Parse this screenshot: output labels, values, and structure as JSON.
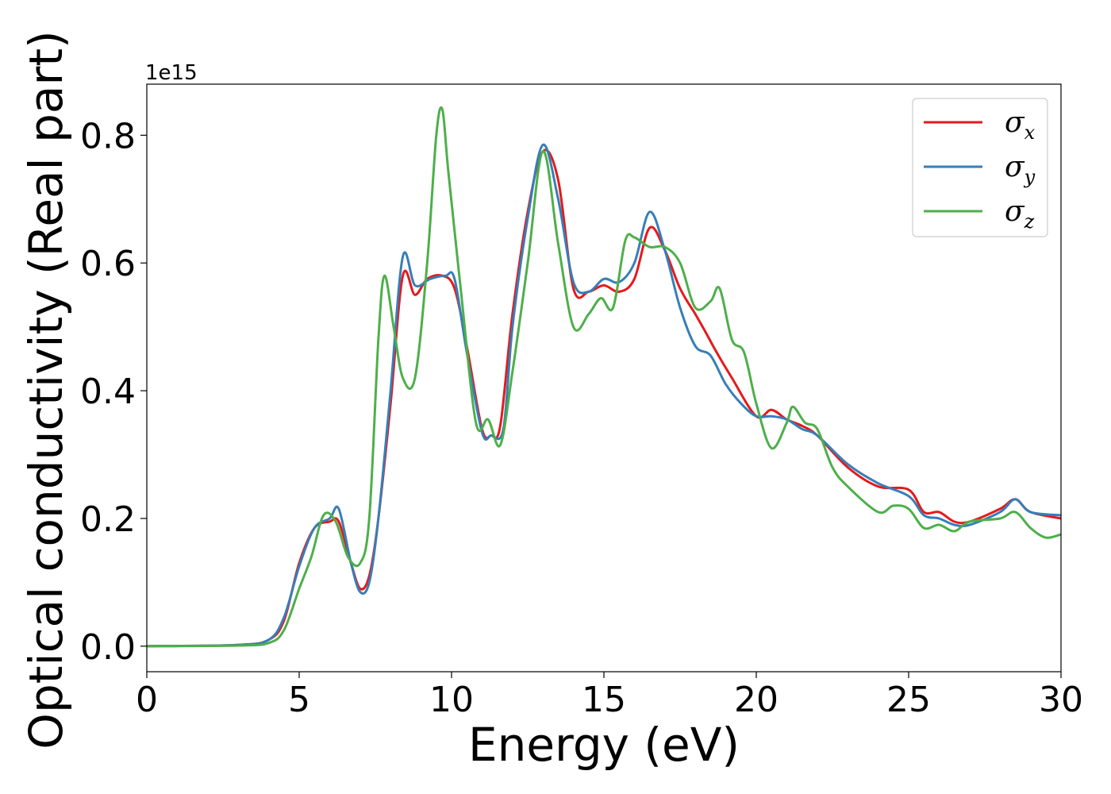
{
  "chart_data": {
    "type": "line",
    "title": "",
    "xlabel": "Energy (eV)",
    "ylabel": "Optical conductivity (Real part)",
    "offset_label": "1e15",
    "xlim": [
      0,
      30
    ],
    "ylim": [
      -0.04,
      0.88
    ],
    "x_ticks": [
      0,
      5,
      10,
      15,
      20,
      25,
      30
    ],
    "x_tick_labels": [
      "0",
      "5",
      "10",
      "15",
      "20",
      "25",
      "30"
    ],
    "y_ticks": [
      0.0,
      0.2,
      0.4,
      0.6,
      0.8
    ],
    "y_tick_labels": [
      "0.0",
      "0.2",
      "0.4",
      "0.6",
      "0.8"
    ],
    "grid": false,
    "legend_position": "top-right",
    "series": [
      {
        "name": "σx",
        "legend_symbol": "σ",
        "legend_subscript": "x",
        "color": "#e41a1c",
        "points": [
          [
            0,
            0
          ],
          [
            3,
            0.002
          ],
          [
            4,
            0.01
          ],
          [
            4.5,
            0.04
          ],
          [
            5,
            0.13
          ],
          [
            5.5,
            0.185
          ],
          [
            6,
            0.195
          ],
          [
            6.3,
            0.195
          ],
          [
            6.7,
            0.13
          ],
          [
            7,
            0.09
          ],
          [
            7.3,
            0.11
          ],
          [
            7.6,
            0.2
          ],
          [
            8,
            0.38
          ],
          [
            8.4,
            0.58
          ],
          [
            8.8,
            0.55
          ],
          [
            9.2,
            0.575
          ],
          [
            9.7,
            0.58
          ],
          [
            10.1,
            0.56
          ],
          [
            10.5,
            0.47
          ],
          [
            11,
            0.34
          ],
          [
            11.3,
            0.33
          ],
          [
            11.6,
            0.345
          ],
          [
            12,
            0.52
          ],
          [
            12.5,
            0.68
          ],
          [
            13,
            0.775
          ],
          [
            13.5,
            0.73
          ],
          [
            14,
            0.56
          ],
          [
            14.5,
            0.555
          ],
          [
            15,
            0.565
          ],
          [
            15.5,
            0.555
          ],
          [
            16,
            0.575
          ],
          [
            16.5,
            0.655
          ],
          [
            17,
            0.62
          ],
          [
            17.5,
            0.56
          ],
          [
            18,
            0.52
          ],
          [
            18.3,
            0.495
          ],
          [
            18.7,
            0.46
          ],
          [
            19.2,
            0.42
          ],
          [
            20,
            0.36
          ],
          [
            20.5,
            0.37
          ],
          [
            21,
            0.355
          ],
          [
            21.5,
            0.345
          ],
          [
            22,
            0.33
          ],
          [
            23,
            0.28
          ],
          [
            24,
            0.25
          ],
          [
            25,
            0.245
          ],
          [
            25.5,
            0.21
          ],
          [
            26,
            0.21
          ],
          [
            26.5,
            0.195
          ],
          [
            27,
            0.195
          ],
          [
            28,
            0.215
          ],
          [
            28.5,
            0.23
          ],
          [
            29,
            0.21
          ],
          [
            30,
            0.2
          ]
        ]
      },
      {
        "name": "σy",
        "legend_symbol": "σ",
        "legend_subscript": "y",
        "color": "#377eb8",
        "points": [
          [
            0,
            0
          ],
          [
            3,
            0.002
          ],
          [
            4,
            0.01
          ],
          [
            4.5,
            0.045
          ],
          [
            5,
            0.125
          ],
          [
            5.5,
            0.185
          ],
          [
            6,
            0.2
          ],
          [
            6.3,
            0.215
          ],
          [
            6.7,
            0.13
          ],
          [
            7,
            0.085
          ],
          [
            7.3,
            0.1
          ],
          [
            7.6,
            0.2
          ],
          [
            8,
            0.4
          ],
          [
            8.4,
            0.61
          ],
          [
            8.8,
            0.565
          ],
          [
            9.3,
            0.575
          ],
          [
            9.8,
            0.58
          ],
          [
            10.1,
            0.575
          ],
          [
            10.5,
            0.46
          ],
          [
            11,
            0.335
          ],
          [
            11.3,
            0.33
          ],
          [
            11.7,
            0.34
          ],
          [
            12,
            0.5
          ],
          [
            12.5,
            0.67
          ],
          [
            13,
            0.785
          ],
          [
            13.5,
            0.7
          ],
          [
            14,
            0.57
          ],
          [
            14.5,
            0.555
          ],
          [
            15,
            0.575
          ],
          [
            15.5,
            0.57
          ],
          [
            16,
            0.6
          ],
          [
            16.5,
            0.68
          ],
          [
            17,
            0.62
          ],
          [
            17.5,
            0.53
          ],
          [
            18,
            0.47
          ],
          [
            18.5,
            0.455
          ],
          [
            19,
            0.41
          ],
          [
            19.5,
            0.38
          ],
          [
            20,
            0.36
          ],
          [
            20.5,
            0.36
          ],
          [
            21,
            0.355
          ],
          [
            21.5,
            0.34
          ],
          [
            22,
            0.33
          ],
          [
            23,
            0.285
          ],
          [
            24,
            0.255
          ],
          [
            25,
            0.235
          ],
          [
            25.5,
            0.205
          ],
          [
            26,
            0.2
          ],
          [
            26.5,
            0.19
          ],
          [
            27,
            0.19
          ],
          [
            28,
            0.21
          ],
          [
            28.5,
            0.23
          ],
          [
            29,
            0.21
          ],
          [
            30,
            0.205
          ]
        ]
      },
      {
        "name": "σz",
        "legend_symbol": "σ",
        "legend_subscript": "z",
        "color": "#4daf4a",
        "points": [
          [
            0,
            0
          ],
          [
            3,
            0.001
          ],
          [
            4,
            0.005
          ],
          [
            4.5,
            0.025
          ],
          [
            5,
            0.09
          ],
          [
            5.4,
            0.14
          ],
          [
            5.8,
            0.205
          ],
          [
            6.2,
            0.195
          ],
          [
            6.6,
            0.14
          ],
          [
            7,
            0.13
          ],
          [
            7.3,
            0.2
          ],
          [
            7.6,
            0.48
          ],
          [
            7.8,
            0.58
          ],
          [
            8.1,
            0.5
          ],
          [
            8.4,
            0.42
          ],
          [
            8.8,
            0.42
          ],
          [
            9.2,
            0.6
          ],
          [
            9.5,
            0.8
          ],
          [
            9.7,
            0.84
          ],
          [
            9.9,
            0.74
          ],
          [
            10.3,
            0.56
          ],
          [
            10.8,
            0.35
          ],
          [
            11.2,
            0.355
          ],
          [
            11.6,
            0.315
          ],
          [
            12,
            0.43
          ],
          [
            12.5,
            0.6
          ],
          [
            13,
            0.775
          ],
          [
            13.5,
            0.63
          ],
          [
            14,
            0.5
          ],
          [
            14.5,
            0.52
          ],
          [
            14.9,
            0.545
          ],
          [
            15.3,
            0.53
          ],
          [
            15.7,
            0.635
          ],
          [
            16,
            0.64
          ],
          [
            16.5,
            0.625
          ],
          [
            17,
            0.625
          ],
          [
            17.5,
            0.6
          ],
          [
            18,
            0.53
          ],
          [
            18.5,
            0.54
          ],
          [
            18.8,
            0.56
          ],
          [
            19.2,
            0.48
          ],
          [
            19.6,
            0.46
          ],
          [
            20,
            0.38
          ],
          [
            20.5,
            0.31
          ],
          [
            21,
            0.35
          ],
          [
            21.2,
            0.375
          ],
          [
            21.6,
            0.35
          ],
          [
            22,
            0.34
          ],
          [
            22.5,
            0.28
          ],
          [
            23,
            0.25
          ],
          [
            24,
            0.21
          ],
          [
            24.5,
            0.22
          ],
          [
            25,
            0.215
          ],
          [
            25.5,
            0.185
          ],
          [
            26,
            0.19
          ],
          [
            26.5,
            0.18
          ],
          [
            27,
            0.195
          ],
          [
            28,
            0.2
          ],
          [
            28.5,
            0.21
          ],
          [
            29,
            0.185
          ],
          [
            29.5,
            0.17
          ],
          [
            30,
            0.175
          ]
        ]
      }
    ]
  }
}
